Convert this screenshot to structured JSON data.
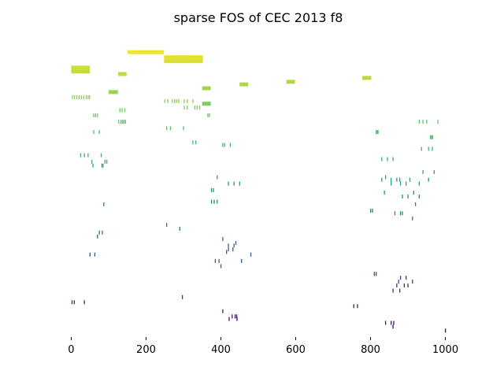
{
  "chart_data": {
    "type": "scatter",
    "title": "sparse FOS of CEC 2013 f8",
    "xlabel": "",
    "ylabel": "",
    "xlim": [
      -22,
      1022
    ],
    "ylim": [
      0,
      22.6
    ],
    "xticks": [
      0,
      200,
      400,
      600,
      800,
      1000
    ],
    "axes_visible": false,
    "grid": false,
    "legend": "none",
    "marker": "vertical-dash",
    "colormap": "viridis, bottom rows purple to top rows yellow",
    "segments": [
      {
        "x0": 150,
        "x1": 248,
        "y": 22.1,
        "h": 0.3
      },
      {
        "x0": 248,
        "x1": 352,
        "y": 21.7,
        "h": 0.3
      },
      {
        "x0": 248,
        "x1": 352,
        "y": 21.4,
        "h": 0.3
      },
      {
        "x0": 0,
        "x1": 50,
        "y": 20.9,
        "h": 0.3
      },
      {
        "x0": 0,
        "x1": 50,
        "y": 20.6,
        "h": 0.3
      },
      {
        "x0": 125,
        "x1": 148,
        "y": 20.4,
        "h": 0.3
      },
      {
        "x0": 778,
        "x1": 802,
        "y": 20.1,
        "h": 0.3
      },
      {
        "x0": 575,
        "x1": 598,
        "y": 19.8,
        "h": 0.3
      },
      {
        "x0": 450,
        "x1": 473,
        "y": 19.6,
        "h": 0.3
      },
      {
        "x0": 350,
        "x1": 373,
        "y": 19.3,
        "h": 0.3
      },
      {
        "x0": 100,
        "x1": 125,
        "y": 19.0,
        "h": 0.3
      },
      {
        "x0": 350,
        "x1": 373,
        "y": 18.1,
        "h": 0.3
      }
    ],
    "rows": [
      {
        "y": 21.7,
        "x": [
          250,
          256,
          262,
          268,
          274,
          280,
          286,
          292,
          298,
          304,
          310,
          316,
          322,
          328,
          334,
          340,
          346
        ]
      },
      {
        "y": 21.4,
        "x": [
          253,
          259,
          265,
          271,
          277,
          283,
          289,
          295,
          301,
          307,
          313,
          319,
          325,
          331,
          337,
          343,
          349
        ]
      },
      {
        "y": 20.9,
        "x": [
          2,
          8,
          14,
          20,
          26,
          32,
          38,
          44
        ]
      },
      {
        "y": 20.6,
        "x": [
          4,
          10,
          16,
          22,
          28,
          34,
          40,
          46
        ]
      },
      {
        "y": 18.6,
        "x": [
          3,
          9,
          15,
          21,
          27,
          33,
          40,
          45,
          49
        ]
      },
      {
        "y": 18.3,
        "x": [
          250,
          258,
          270,
          276,
          281,
          287,
          302,
          310,
          325
        ]
      },
      {
        "y": 17.8,
        "x": [
          302,
          310,
          330,
          336,
          343
        ]
      },
      {
        "y": 17.6,
        "x": [
          130,
          136,
          143
        ]
      },
      {
        "y": 17.2,
        "x": [
          60,
          65,
          70,
          365,
          369
        ]
      },
      {
        "y": 16.7,
        "x": [
          127,
          133,
          137,
          141,
          145,
          930,
          940,
          950,
          980
        ]
      },
      {
        "y": 16.2,
        "x": [
          255,
          265,
          300
        ]
      },
      {
        "y": 15.9,
        "x": [
          60,
          75,
          815,
          818,
          820
        ]
      },
      {
        "y": 15.5,
        "x": [
          960,
          963,
          966
        ]
      },
      {
        "y": 15.1,
        "x": [
          325,
          333
        ]
      },
      {
        "y": 14.9,
        "x": [
          405,
          410,
          425
        ]
      },
      {
        "y": 14.6,
        "x": [
          936,
          955,
          965
        ]
      },
      {
        "y": 14.1,
        "x": [
          25,
          35,
          45,
          80
        ]
      },
      {
        "y": 13.8,
        "x": [
          830,
          845,
          860
        ]
      },
      {
        "y": 13.6,
        "x": [
          55,
          90,
          95
        ]
      },
      {
        "y": 13.3,
        "x": [
          58,
          82,
          85
        ]
      },
      {
        "y": 12.8,
        "x": [
          940,
          970
        ]
      },
      {
        "y": 12.4,
        "x": [
          390,
          840
        ]
      },
      {
        "y": 12.2,
        "x": [
          830,
          855,
          870,
          878,
          905,
          955
        ]
      },
      {
        "y": 11.9,
        "x": [
          420,
          435,
          450,
          855,
          880,
          895,
          930
        ]
      },
      {
        "y": 11.4,
        "x": [
          375,
          380
        ]
      },
      {
        "y": 11.2,
        "x": [
          837,
          915
        ]
      },
      {
        "y": 10.9,
        "x": [
          885,
          900,
          930
        ]
      },
      {
        "y": 10.5,
        "x": [
          375,
          382,
          390
        ]
      },
      {
        "y": 10.3,
        "x": [
          87,
          920
        ]
      },
      {
        "y": 9.8,
        "x": [
          800,
          805
        ]
      },
      {
        "y": 9.6,
        "x": [
          865,
          880,
          885
        ]
      },
      {
        "y": 9.2,
        "x": [
          912
        ]
      },
      {
        "y": 8.7,
        "x": [
          255
        ]
      },
      {
        "y": 8.4,
        "x": [
          290
        ]
      },
      {
        "y": 8.1,
        "x": [
          75,
          83
        ]
      },
      {
        "y": 7.8,
        "x": [
          70
        ]
      },
      {
        "y": 7.6,
        "x": [
          405
        ]
      },
      {
        "y": 7.3,
        "x": [
          440
        ]
      },
      {
        "y": 7.1,
        "x": [
          420,
          435
        ]
      },
      {
        "y": 6.8,
        "x": [
          420,
          432
        ]
      },
      {
        "y": 6.6,
        "x": [
          415
        ]
      },
      {
        "y": 6.4,
        "x": [
          50,
          63,
          480
        ]
      },
      {
        "y": 5.9,
        "x": [
          385,
          395,
          455
        ]
      },
      {
        "y": 5.5,
        "x": [
          400
        ]
      },
      {
        "y": 4.9,
        "x": [
          810,
          815
        ]
      },
      {
        "y": 4.6,
        "x": [
          880,
          895
        ]
      },
      {
        "y": 4.3,
        "x": [
          875,
          912
        ]
      },
      {
        "y": 4.0,
        "x": [
          870,
          890,
          900
        ]
      },
      {
        "y": 3.6,
        "x": [
          860,
          878
        ]
      },
      {
        "y": 3.1,
        "x": [
          297
        ]
      },
      {
        "y": 2.7,
        "x": [
          2,
          8,
          35
        ]
      },
      {
        "y": 2.4,
        "x": [
          755,
          765
        ]
      },
      {
        "y": 2.0,
        "x": [
          405
        ]
      },
      {
        "y": 1.6,
        "x": [
          430,
          438,
          442
        ]
      },
      {
        "y": 1.4,
        "x": [
          422,
          443
        ]
      },
      {
        "y": 1.1,
        "x": [
          840,
          855,
          862
        ]
      },
      {
        "y": 0.8,
        "x": [
          860
        ]
      },
      {
        "y": 0.5,
        "x": [
          1000
        ]
      }
    ]
  }
}
